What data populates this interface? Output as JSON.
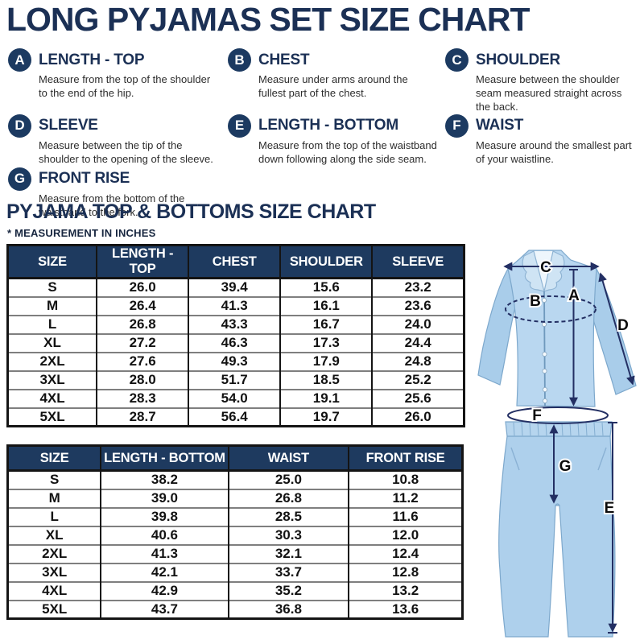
{
  "page": {
    "title": "LONG PYJAMAS SET SIZE CHART",
    "subtitle": "PYJAMA TOP & BOTTOMS SIZE CHART",
    "note": "* MEASUREMENT IN INCHES"
  },
  "definitions": [
    {
      "letter": "A",
      "term": "LENGTH - TOP",
      "description": "Measure from the top of the shoulder to the end of the hip."
    },
    {
      "letter": "B",
      "term": "CHEST",
      "description": "Measure under arms around the fullest part of the chest."
    },
    {
      "letter": "C",
      "term": "SHOULDER",
      "description": "Measure between the shoulder seam measured straight across the back."
    },
    {
      "letter": "D",
      "term": "SLEEVE",
      "description": "Measure between the tip of the shoulder to the opening of the sleeve."
    },
    {
      "letter": "E",
      "term": "LENGTH - BOTTOM",
      "description": "Measure from the top of the waistband down following along the side seam."
    },
    {
      "letter": "F",
      "term": "WAIST",
      "description": "Measure around the smallest part of your waistline."
    },
    {
      "letter": "G",
      "term": "FRONT RISE",
      "description": "Measure from the bottom of the waistband to the fork."
    }
  ],
  "top_table": {
    "headers": [
      "SIZE",
      "LENGTH - TOP",
      "CHEST",
      "SHOULDER",
      "SLEEVE"
    ],
    "rows": [
      [
        "S",
        "26.0",
        "39.4",
        "15.6",
        "23.2"
      ],
      [
        "M",
        "26.4",
        "41.3",
        "16.1",
        "23.6"
      ],
      [
        "L",
        "26.8",
        "43.3",
        "16.7",
        "24.0"
      ],
      [
        "XL",
        "27.2",
        "46.3",
        "17.3",
        "24.4"
      ],
      [
        "2XL",
        "27.6",
        "49.3",
        "17.9",
        "24.8"
      ],
      [
        "3XL",
        "28.0",
        "51.7",
        "18.5",
        "25.2"
      ],
      [
        "4XL",
        "28.3",
        "54.0",
        "19.1",
        "25.6"
      ],
      [
        "5XL",
        "28.7",
        "56.4",
        "19.7",
        "26.0"
      ]
    ]
  },
  "bottom_table": {
    "headers": [
      "SIZE",
      "LENGTH - BOTTOM",
      "WAIST",
      "FRONT RISE"
    ],
    "rows": [
      [
        "S",
        "38.2",
        "25.0",
        "10.8"
      ],
      [
        "M",
        "39.0",
        "26.8",
        "11.2"
      ],
      [
        "L",
        "39.8",
        "28.5",
        "11.6"
      ],
      [
        "XL",
        "40.6",
        "30.3",
        "12.0"
      ],
      [
        "2XL",
        "41.3",
        "32.1",
        "12.4"
      ],
      [
        "3XL",
        "42.1",
        "33.7",
        "12.8"
      ],
      [
        "4XL",
        "42.9",
        "35.2",
        "13.2"
      ],
      [
        "5XL",
        "43.7",
        "36.8",
        "13.6"
      ]
    ]
  },
  "diagram": {
    "labels": {
      "a": "A",
      "b": "B",
      "c": "C",
      "d": "D",
      "e": "E",
      "f": "F",
      "g": "G"
    }
  },
  "colors": {
    "navy_text": "#1b3055",
    "table_header_bg": "#1e3a5f",
    "badge_bg": "#1c3a61",
    "arrow_navy": "#232f63",
    "shirt_blue": "#b9d7f0",
    "pants_blue": "#aed0ec"
  }
}
